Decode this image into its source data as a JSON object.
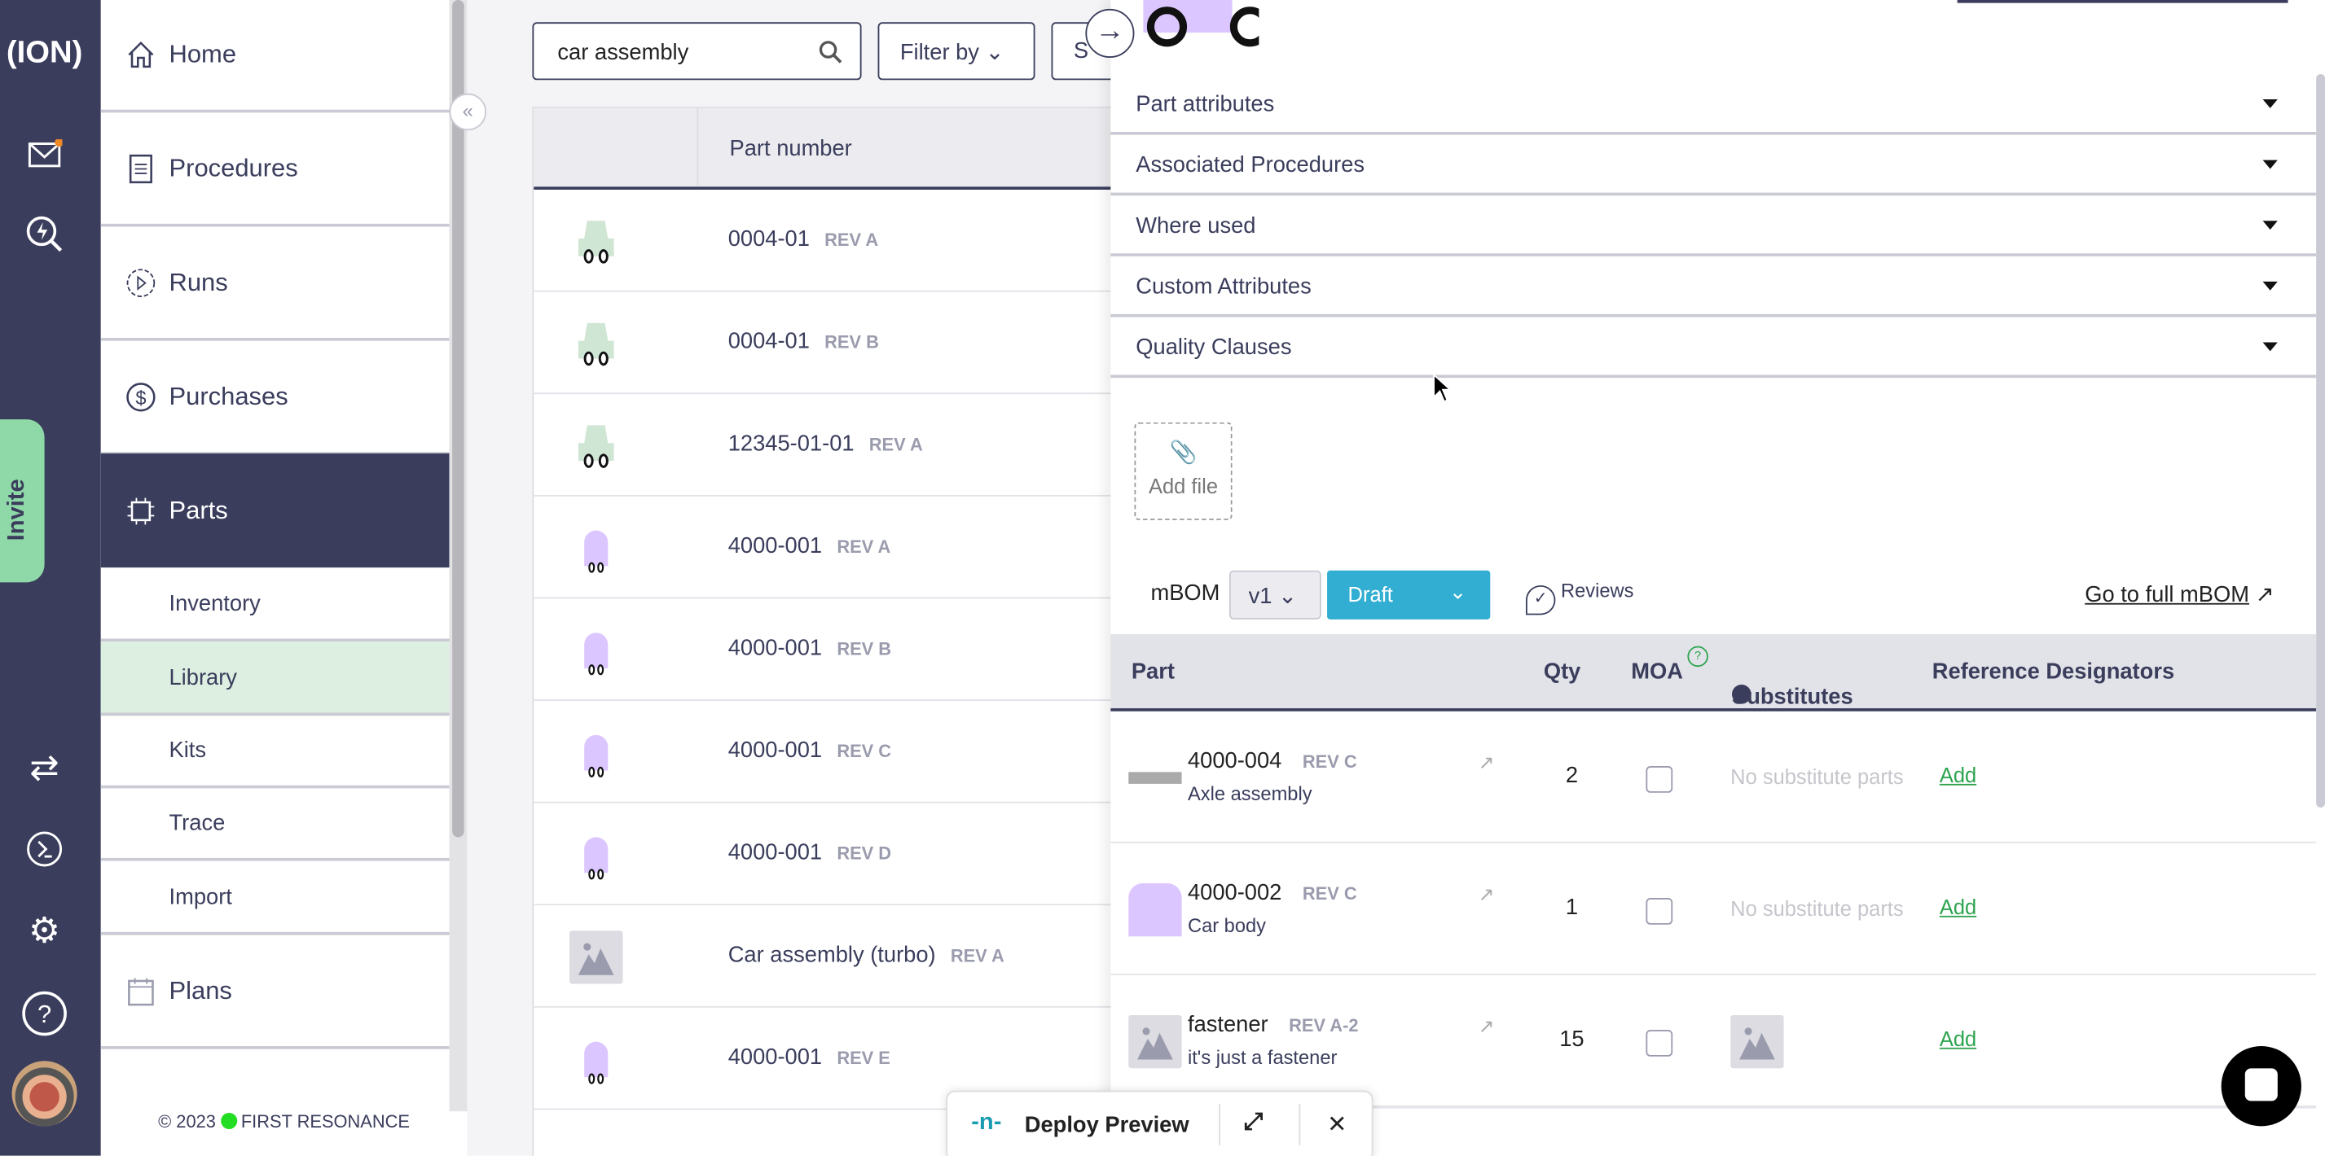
{
  "rail": {
    "logo": "(ION)",
    "invite": "Invite",
    "colors": {
      "rail": "#3a3d5c",
      "invite": "#8fd9a8",
      "notification": "#f08a24"
    }
  },
  "nav": {
    "items": [
      {
        "label": "Home",
        "icon": "home-icon"
      },
      {
        "label": "Procedures",
        "icon": "document-icon"
      },
      {
        "label": "Runs",
        "icon": "play-circle-icon"
      },
      {
        "label": "Purchases",
        "icon": "dollar-icon"
      },
      {
        "label": "Parts",
        "icon": "chip-icon",
        "active": true
      },
      {
        "label": "Plans",
        "icon": "calendar-icon"
      }
    ],
    "parts_sub": [
      {
        "label": "Inventory"
      },
      {
        "label": "Library",
        "active": true
      },
      {
        "label": "Kits"
      },
      {
        "label": "Trace"
      },
      {
        "label": "Import"
      }
    ],
    "footer": {
      "copyright": "© 2023",
      "brand": "FIRST RESONANCE"
    }
  },
  "main": {
    "search": {
      "value": "car assembly"
    },
    "filter_label": "Filter by",
    "next_btn_label": "S",
    "table": {
      "header": "Part number",
      "rows": [
        {
          "pn": "0004-01",
          "rev": "REV A",
          "thumb": "green-car"
        },
        {
          "pn": "0004-01",
          "rev": "REV B",
          "thumb": "green-car"
        },
        {
          "pn": "12345-01-01",
          "rev": "REV A",
          "thumb": "green-car"
        },
        {
          "pn": "4000-001",
          "rev": "REV A",
          "thumb": "purple-car"
        },
        {
          "pn": "4000-001",
          "rev": "REV B",
          "thumb": "purple-car"
        },
        {
          "pn": "4000-001",
          "rev": "REV C",
          "thumb": "purple-car"
        },
        {
          "pn": "4000-001",
          "rev": "REV D",
          "thumb": "purple-car"
        },
        {
          "pn": "Car assembly (turbo)",
          "rev": "REV A",
          "thumb": "placeholder"
        },
        {
          "pn": "4000-001",
          "rev": "REV E",
          "thumb": "purple-car"
        }
      ]
    }
  },
  "panel": {
    "sections": [
      "Part attributes",
      "Associated Procedures",
      "Where used",
      "Custom Attributes",
      "Quality Clauses"
    ],
    "add_file": "Add file",
    "mbom": {
      "label": "mBOM",
      "version": "v1",
      "status": "Draft",
      "status_color": "#31aed1",
      "reviews": "Reviews",
      "full_link": "Go to full mBOM"
    },
    "bom_table": {
      "headers": {
        "part": "Part",
        "qty": "Qty",
        "moa": "MOA",
        "moa_help": "?",
        "substitutes": "Substitutes",
        "refdes": "Reference Designators"
      },
      "rows": [
        {
          "pn": "4000-004",
          "rev": "REV C",
          "desc": "Axle assembly",
          "qty": "2",
          "moa": false,
          "subs": "No substitute parts",
          "add": "Add"
        },
        {
          "pn": "4000-002",
          "rev": "REV C",
          "desc": "Car body",
          "qty": "1",
          "moa": false,
          "subs": "No substitute parts",
          "add": "Add"
        },
        {
          "pn": "fastener",
          "rev": "REV A-2",
          "desc": "it's just a fastener",
          "qty": "15",
          "moa": false,
          "subs": "",
          "add": "Add"
        }
      ]
    }
  },
  "deploy": {
    "label": "Deploy Preview"
  }
}
